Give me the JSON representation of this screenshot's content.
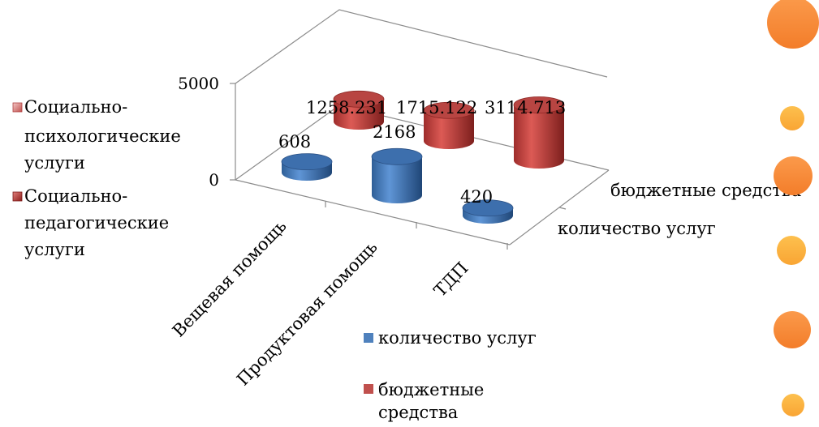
{
  "chart_data": {
    "type": "bar",
    "style": "3d-cylinder",
    "categories": [
      "Вещевая помощь",
      "Продуктовая помощь",
      "ТДП"
    ],
    "depth_categories": [
      "количество услуг",
      "бюджетные средства"
    ],
    "series": [
      {
        "name": "количество услуг",
        "color": "#4f81bd",
        "values": [
          608,
          2168,
          420
        ]
      },
      {
        "name": "бюджетные средства",
        "color": "#c0504d",
        "values": [
          1258.231,
          1715.122,
          3114.713
        ]
      }
    ],
    "data_labels": {
      "количество услуг": [
        "608",
        "2168",
        "420"
      ],
      "бюджетные средства": [
        "1258.231",
        "1715.122",
        "3114.713"
      ]
    },
    "y_ticks": [
      "0",
      "5000"
    ],
    "ylim": [
      0,
      5000
    ],
    "legend": [
      {
        "label": "количество услуг",
        "color": "#4f81bd"
      },
      {
        "label": "бюджетные средства",
        "color": "#c0504d"
      }
    ],
    "grid": false
  },
  "side_legend": {
    "items": [
      {
        "label_lines": [
          "Социально-",
          "психологические",
          "услуги"
        ],
        "color": "#c0504d",
        "marker": "gradient-square-light"
      },
      {
        "label_lines": [
          "Социально-",
          "педагогические",
          "услуги"
        ],
        "color": "#c0504d",
        "marker": "gradient-square-dark"
      }
    ]
  },
  "decor": {
    "circle_colors": [
      "#f79646",
      "#fbb040"
    ]
  }
}
